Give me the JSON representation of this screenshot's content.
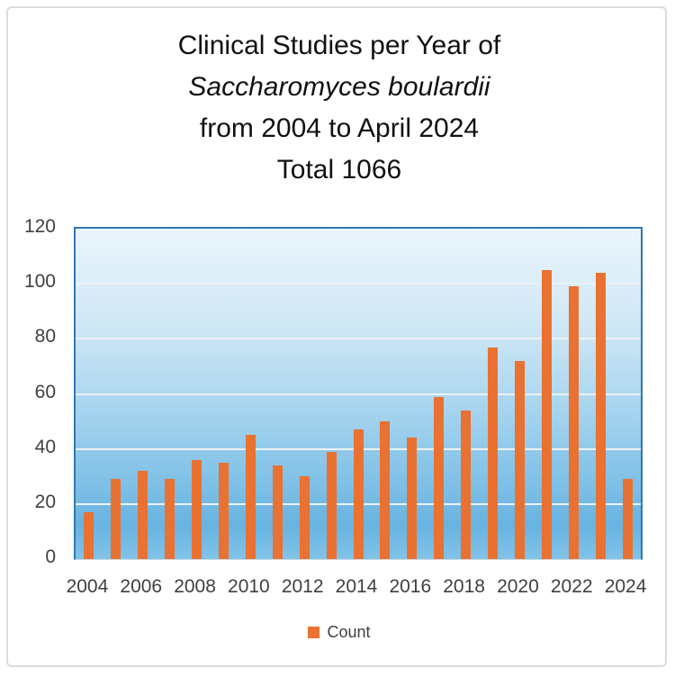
{
  "title": {
    "line1": "Clinical Studies per Year of",
    "line2": "Saccharomyces boulardii",
    "line3": "from 2004 to April 2024",
    "line4": "Total 1066"
  },
  "legend": {
    "label": "Count"
  },
  "chart_data": {
    "type": "bar",
    "title": "Clinical Studies per Year of Saccharomyces boulardii from 2004 to April 2024 Total 1066",
    "series_name": "Count",
    "categories": [
      2004,
      2005,
      2006,
      2007,
      2008,
      2009,
      2010,
      2011,
      2012,
      2013,
      2014,
      2015,
      2016,
      2017,
      2018,
      2019,
      2020,
      2021,
      2022,
      2023,
      2024
    ],
    "values": [
      17,
      29,
      32,
      29,
      36,
      35,
      45,
      34,
      30,
      39,
      47,
      50,
      44,
      59,
      54,
      77,
      72,
      105,
      99,
      104,
      29
    ],
    "total": 1066,
    "xlabel": "",
    "ylabel": "",
    "ylim": [
      0,
      120
    ],
    "yticks": [
      0,
      20,
      40,
      60,
      80,
      100,
      120
    ],
    "xtick_labels": [
      "2004",
      "2006",
      "2008",
      "2010",
      "2012",
      "2014",
      "2016",
      "2018",
      "2020",
      "2022",
      "2024"
    ],
    "grid": true,
    "legend_position": "bottom",
    "bar_color": "#e97132",
    "plot_bg_gradient_top": "#eaf5fc",
    "plot_bg_gradient_bottom": "#82c3e8",
    "plot_border_color": "#3077b5",
    "gridline_color": "#ecf2f5",
    "tick_label_color": "#3f3f3f",
    "title_color": "#111111"
  }
}
